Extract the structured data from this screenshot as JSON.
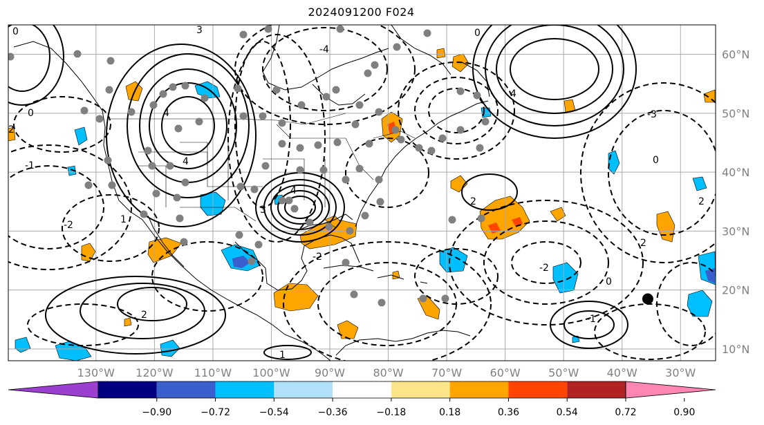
{
  "title": "2024091200 F024",
  "map": {
    "projection": "plate-carree",
    "lon_range": [
      -145,
      -24
    ],
    "lat_range": [
      8,
      65
    ],
    "gridlines": true,
    "lon_labels": [
      "130°W",
      "120°W",
      "110°W",
      "100°W",
      "90°W",
      "80°W",
      "70°W",
      "60°W",
      "50°W",
      "40°W",
      "30°W"
    ],
    "lat_labels": [
      "60°N",
      "50°N",
      "40°N",
      "30°N",
      "20°N",
      "10°N"
    ],
    "lon_values": [
      -130,
      -120,
      -110,
      -100,
      -90,
      -80,
      -70,
      -60,
      -50,
      -40,
      -30
    ],
    "lat_values": [
      60,
      50,
      40,
      30,
      20,
      10
    ],
    "marker": {
      "lon": -35.6,
      "lat": 18.5,
      "color": "#000000"
    },
    "contour_labels": [
      "-1",
      "2",
      "4",
      "-2",
      "1",
      "0",
      "-4",
      "3",
      "-3"
    ],
    "colors": {
      "contour": "#000000",
      "station_dot": "#808080",
      "grid": "#aaaaaa"
    }
  },
  "colorbar": {
    "tick_labels": [
      "−0.90",
      "−0.72",
      "−0.54",
      "−0.36",
      "−0.18",
      "0.18",
      "0.36",
      "0.54",
      "0.72",
      "0.90"
    ],
    "tick_values": [
      -0.9,
      -0.72,
      -0.54,
      -0.36,
      -0.18,
      0.18,
      0.36,
      0.54,
      0.72,
      0.9
    ],
    "colors": [
      "#9b3fd0",
      "#000080",
      "#3a5fcd",
      "#00bfff",
      "#b0e0fa",
      "#ffffff",
      "#fde68a",
      "#ffa500",
      "#ff4500",
      "#b22222",
      "#ff85b3"
    ],
    "extend": "both"
  }
}
